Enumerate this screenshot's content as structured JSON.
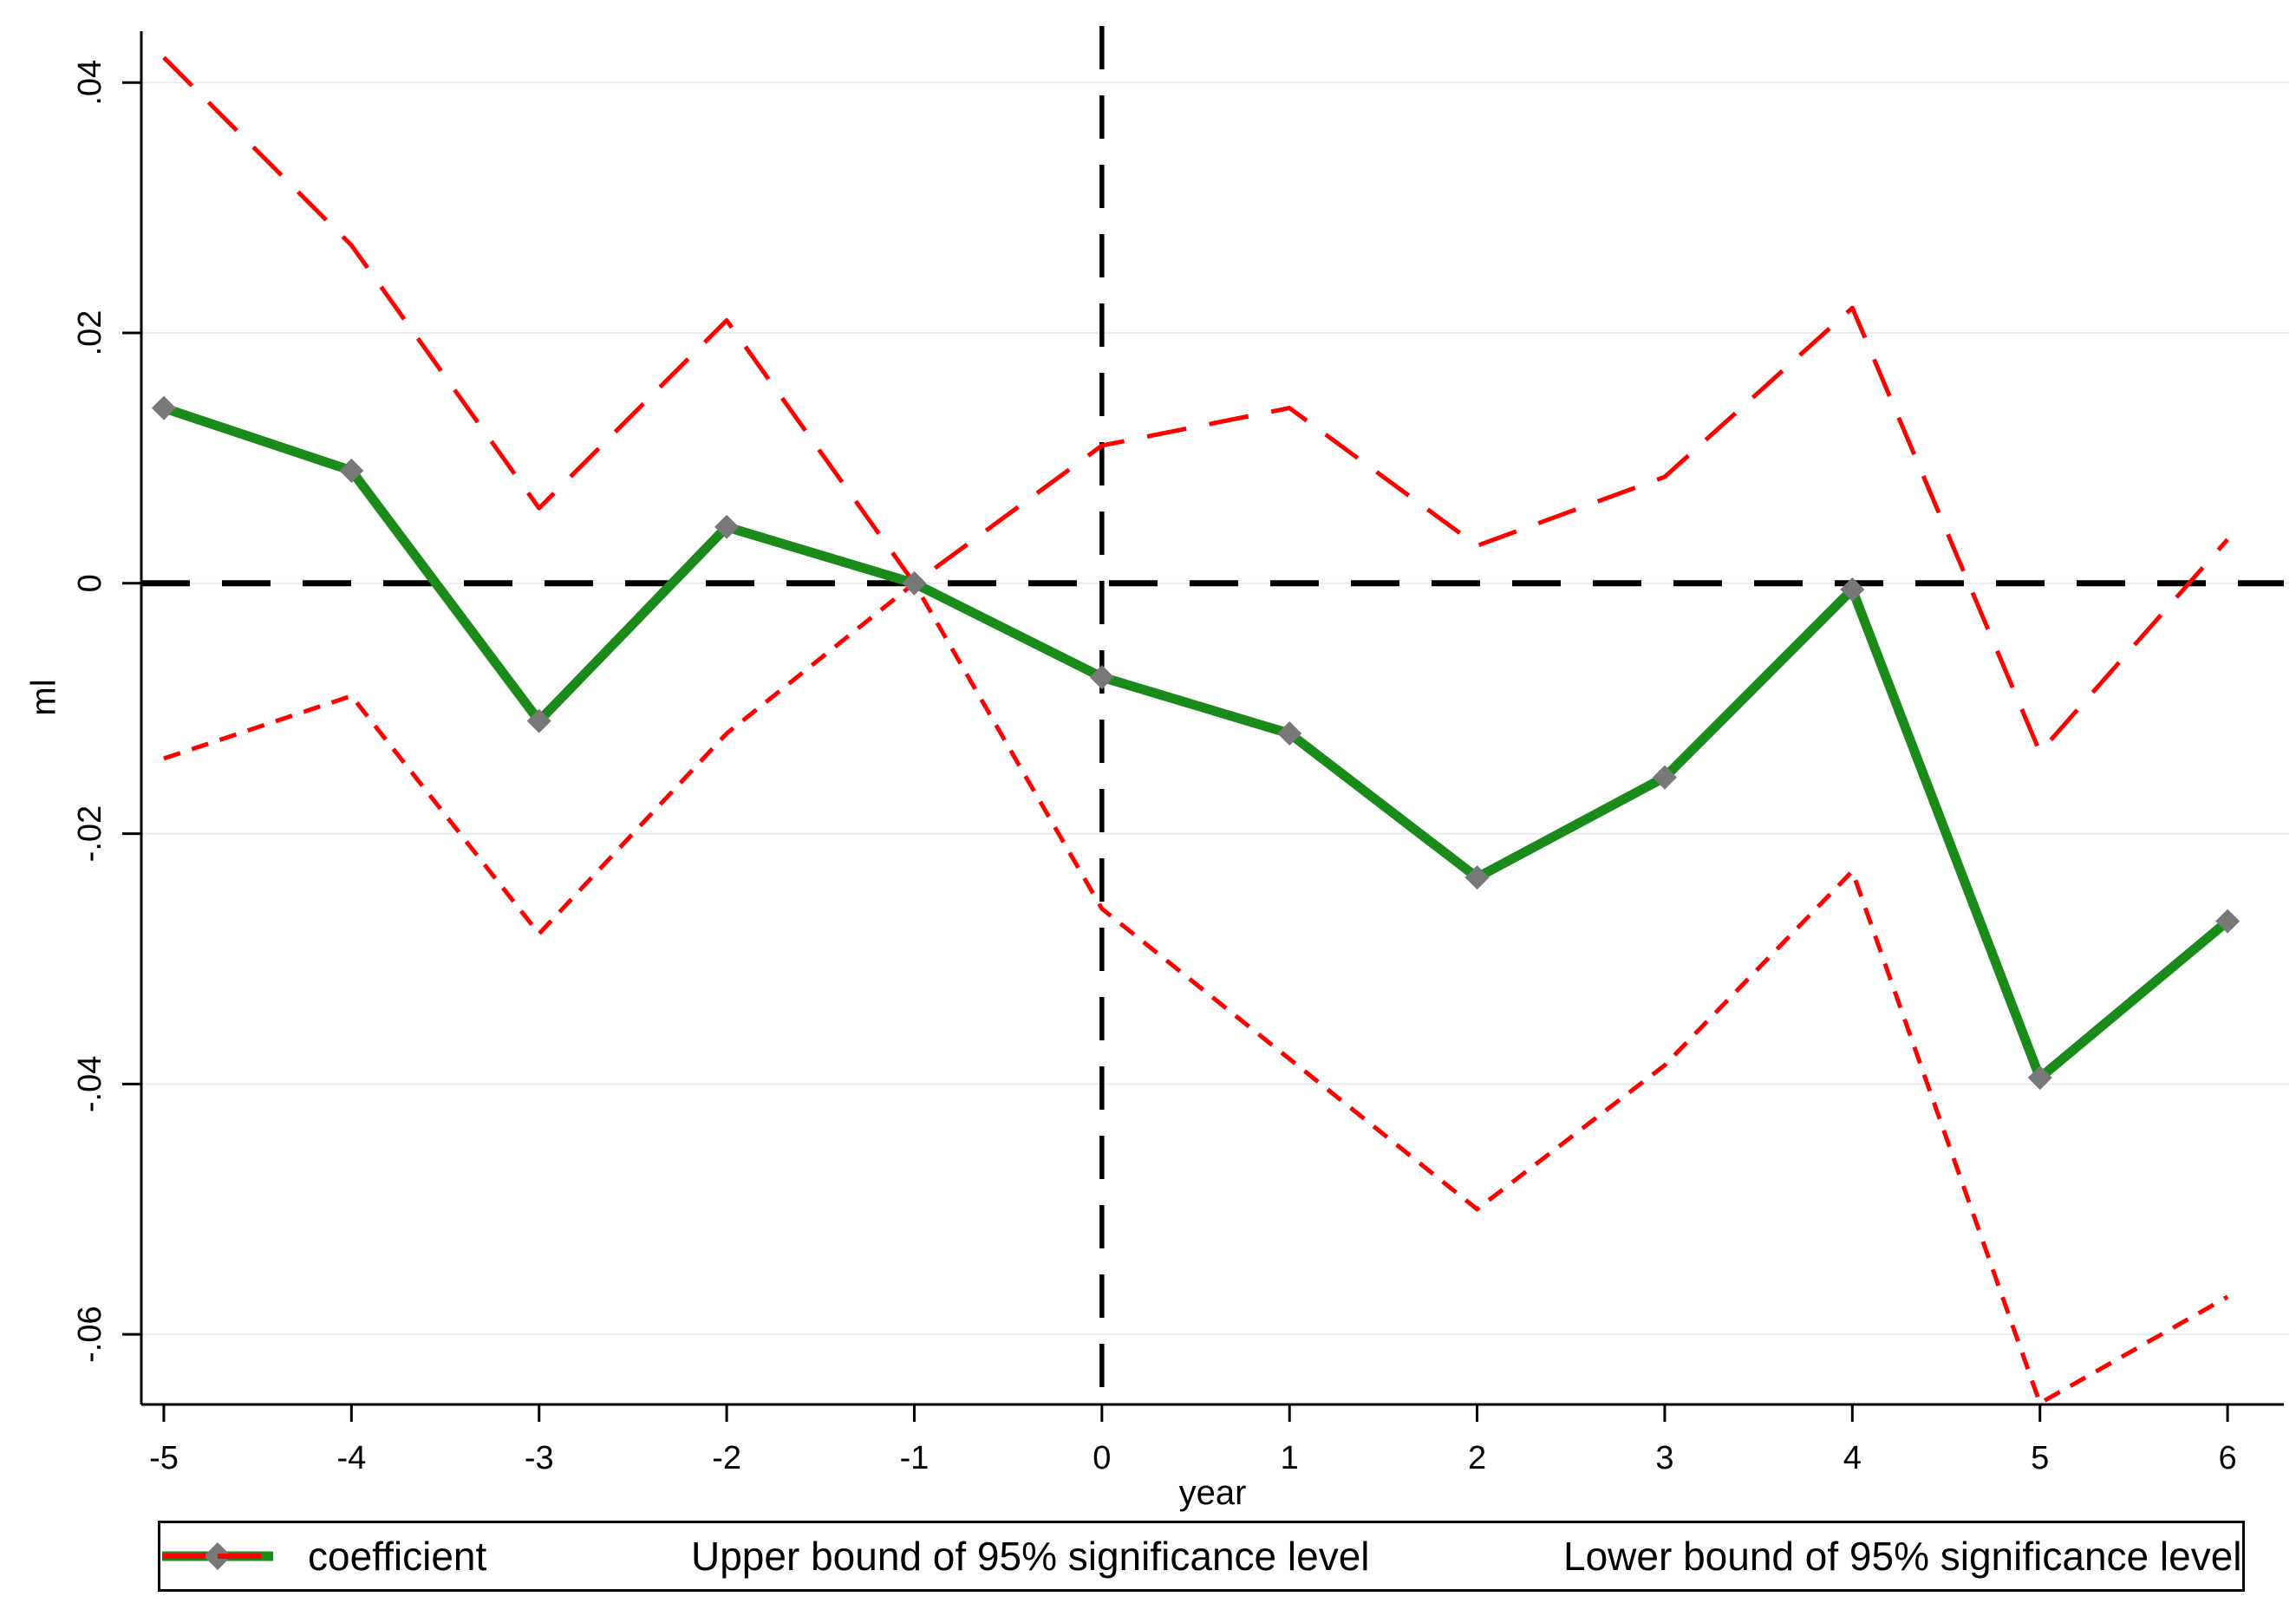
{
  "chart_data": {
    "type": "line",
    "title": "",
    "xlabel": "year",
    "ylabel": "ml",
    "x": [
      -5,
      -4,
      -3,
      -2,
      -1,
      0,
      1,
      2,
      3,
      4,
      5,
      6
    ],
    "series": [
      {
        "name": "coefficient",
        "color": "#1a8a1a",
        "style": "solid",
        "line_width": 11,
        "marker": "diamond",
        "marker_color": "#787878",
        "values": [
          0.014,
          0.009,
          -0.011,
          0.0045,
          0,
          -0.0075,
          -0.012,
          -0.0235,
          -0.0155,
          -0.0005,
          -0.0395,
          -0.027
        ]
      },
      {
        "name": "Upper bound of 95% significance level",
        "color": "#ff0000",
        "style": "long-dash",
        "line_width": 5,
        "values": [
          0.042,
          0.027,
          0.006,
          0.021,
          0,
          0.011,
          0.014,
          0.003,
          0.0085,
          0.022,
          -0.0135,
          0.0035
        ]
      },
      {
        "name": "Lower bound of 95% significance level",
        "color": "#ff0000",
        "style": "short-dash",
        "line_width": 5,
        "values": [
          -0.014,
          -0.009,
          -0.028,
          -0.012,
          0,
          -0.026,
          -0.038,
          -0.05,
          -0.0385,
          -0.023,
          -0.0655,
          -0.057
        ]
      }
    ],
    "xticks": [
      "-5",
      "-4",
      "-3",
      "-2",
      "-1",
      "0",
      "1",
      "2",
      "3",
      "4",
      "5",
      "6"
    ],
    "xtick_values": [
      -5,
      -4,
      -3,
      -2,
      -1,
      0,
      1,
      2,
      3,
      4,
      5,
      6
    ],
    "ytick_labels": [
      ".04",
      ".02",
      "0",
      "-.02",
      "-.04",
      "-.06"
    ],
    "ytick_values": [
      0.04,
      0.02,
      0,
      -0.02,
      -0.04,
      -0.06
    ],
    "xlim": [
      -5.12,
      6.3
    ],
    "ylim": [
      -0.0656,
      0.0441
    ],
    "grid": "horizontal gridlines only",
    "gridline_color": "#ebebeb",
    "axis_color": "#000000",
    "reference_lines": {
      "horizontal_at_zero": {
        "color": "#000000",
        "style": "long-dash"
      },
      "vertical_at_zero": {
        "color": "#000000",
        "style": "long-dash"
      }
    },
    "legend_position": "bottom"
  }
}
